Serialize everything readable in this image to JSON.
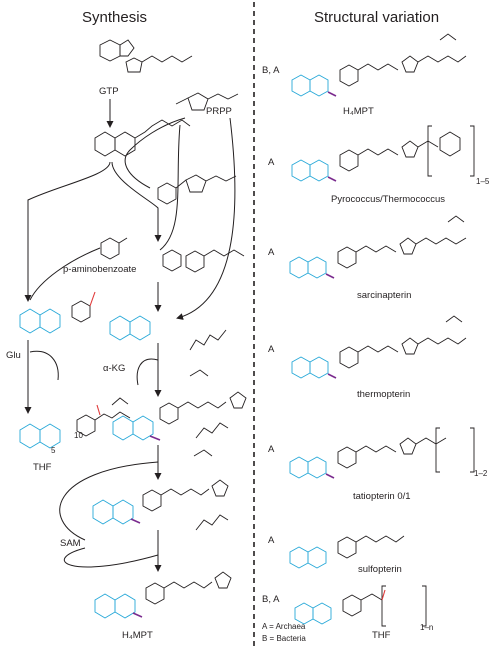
{
  "panels": {
    "left_title": "Synthesis",
    "right_title": "Structural variation"
  },
  "synthesis": {
    "gtp": "GTP",
    "prpp": "PRPP",
    "paba": "p-aminobenzoate",
    "glu": "Glu",
    "akg": "α-KG",
    "thf": "THF",
    "sam": "SAM",
    "h4mpt": "H₄MPT",
    "pos5": "5",
    "pos10": "10"
  },
  "variants": [
    {
      "organisms": "B, A",
      "name": "H₄MPT",
      "subscript": ""
    },
    {
      "organisms": "A",
      "name": "Pyrococcus/Thermococcus",
      "subscript": "1–5"
    },
    {
      "organisms": "A",
      "name": "sarcinapterin",
      "subscript": ""
    },
    {
      "organisms": "A",
      "name": "thermopterin",
      "subscript": ""
    },
    {
      "organisms": "A",
      "name": "tatiopterin 0/1",
      "subscript": "1–2"
    },
    {
      "organisms": "A",
      "name": "sulfopterin",
      "subscript": ""
    },
    {
      "organisms": "B, A",
      "name": "THF",
      "subscript": "1–n"
    }
  ],
  "legend": {
    "a": "A = Archaea",
    "b": "B = Bacteria"
  },
  "colors": {
    "pterin": "#27a8d8",
    "nitrogen5": "#2ca04a",
    "carbonyl": "#e03a3a",
    "methyl": "#7a2b8e",
    "ink": "#231f20"
  }
}
